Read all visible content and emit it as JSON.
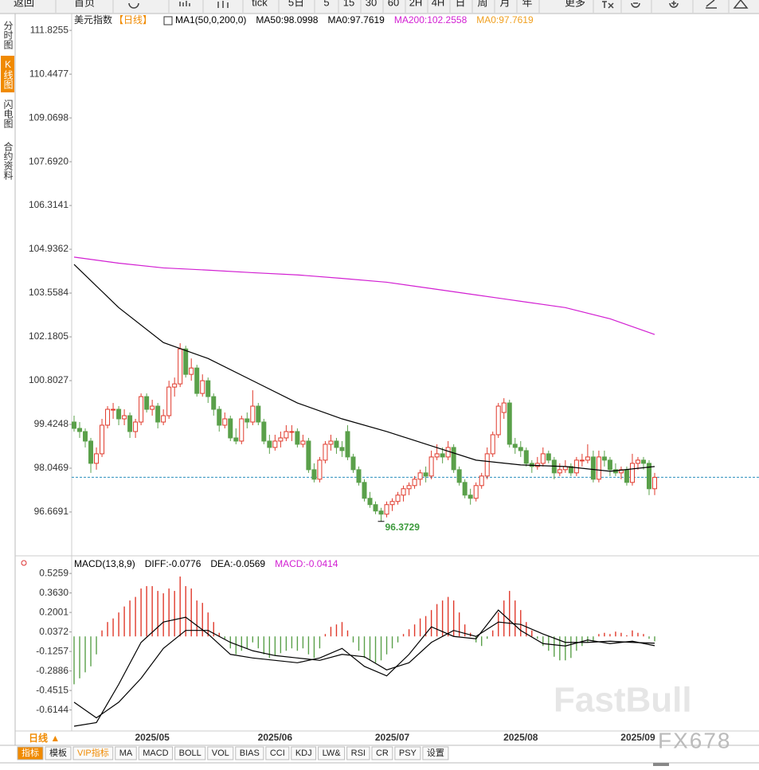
{
  "toolbar": {
    "items": [
      "返回",
      "首页",
      "tick",
      "5日",
      "5",
      "15",
      "30",
      "60",
      "2H",
      "4H",
      "日",
      "周",
      "月",
      "年",
      "更多"
    ]
  },
  "sidebar": {
    "items": [
      "分时图",
      "K线图",
      "闪电图",
      "合约资料"
    ]
  },
  "chart_data": [
    {
      "type": "candlestick",
      "title": "美元指数",
      "period": "【日线】",
      "header_items": [
        {
          "text": "MA1(50,0,200,0)",
          "color": "#000000"
        },
        {
          "text": "MA50:98.0998",
          "color": "#000000"
        },
        {
          "text": "MA0:97.7619",
          "color": "#000000"
        },
        {
          "text": "MA200:102.2558",
          "color": "#d21fd2"
        },
        {
          "text": "MA0:97.7619",
          "color": "#f0a020"
        }
      ],
      "categories": [
        null,
        null,
        null,
        null,
        null,
        null,
        null,
        null,
        null,
        null,
        null,
        null,
        null,
        null,
        "2025/05",
        null,
        null,
        null,
        null,
        null,
        null,
        null,
        null,
        null,
        null,
        null,
        null,
        null,
        null,
        null,
        null,
        null,
        null,
        null,
        null,
        null,
        "2025/06",
        null,
        null,
        null,
        null,
        null,
        null,
        null,
        null,
        null,
        null,
        null,
        null,
        null,
        null,
        null,
        null,
        null,
        null,
        null,
        null,
        "2025/07",
        null,
        null,
        null,
        null,
        null,
        null,
        null,
        null,
        null,
        null,
        null,
        null,
        null,
        null,
        null,
        null,
        null,
        null,
        null,
        null,
        null,
        null,
        "2025/08",
        null,
        null,
        null,
        null,
        null,
        null,
        null,
        null,
        null,
        null,
        null,
        null,
        null,
        null,
        null,
        null,
        null,
        null,
        null,
        null,
        "2025/09",
        null,
        null,
        null
      ],
      "ohlc": [
        [
          99.5,
          99.7,
          99.2,
          99.3
        ],
        [
          99.3,
          99.5,
          99.0,
          99.2
        ],
        [
          99.2,
          99.3,
          98.7,
          98.9
        ],
        [
          98.9,
          99.0,
          97.9,
          98.2
        ],
        [
          98.2,
          98.7,
          98.0,
          98.5
        ],
        [
          98.5,
          99.6,
          98.4,
          99.4
        ],
        [
          99.4,
          100.0,
          99.3,
          99.9
        ],
        [
          99.9,
          100.1,
          99.6,
          99.9
        ],
        [
          99.9,
          100.0,
          99.4,
          99.6
        ],
        [
          99.6,
          99.9,
          99.4,
          99.7
        ],
        [
          99.7,
          99.8,
          99.0,
          99.2
        ],
        [
          99.2,
          99.6,
          99.0,
          99.5
        ],
        [
          99.5,
          100.4,
          99.4,
          100.3
        ],
        [
          100.3,
          100.4,
          99.8,
          99.9
        ],
        [
          99.9,
          100.2,
          99.7,
          100.0
        ],
        [
          100.0,
          100.1,
          99.3,
          99.5
        ],
        [
          99.5,
          99.9,
          99.4,
          99.7
        ],
        [
          99.7,
          100.8,
          99.6,
          100.6
        ],
        [
          100.6,
          100.9,
          100.3,
          100.7
        ],
        [
          100.7,
          101.98,
          100.6,
          101.8
        ],
        [
          101.8,
          101.9,
          100.9,
          101.0
        ],
        [
          101.0,
          101.5,
          100.8,
          101.2
        ],
        [
          101.2,
          101.3,
          100.3,
          100.4
        ],
        [
          100.4,
          101.0,
          100.3,
          100.8
        ],
        [
          100.8,
          100.9,
          100.1,
          100.3
        ],
        [
          100.3,
          100.4,
          99.7,
          99.9
        ],
        [
          99.9,
          100.0,
          99.2,
          99.4
        ],
        [
          99.4,
          99.8,
          99.3,
          99.6
        ],
        [
          99.6,
          99.7,
          98.9,
          99.0
        ],
        [
          99.0,
          99.3,
          98.8,
          98.9
        ],
        [
          98.9,
          99.7,
          98.8,
          99.6
        ],
        [
          99.6,
          99.8,
          99.3,
          99.5
        ],
        [
          99.5,
          100.5,
          99.4,
          100.0
        ],
        [
          100.0,
          100.1,
          99.4,
          99.5
        ],
        [
          99.5,
          99.6,
          98.8,
          98.9
        ],
        [
          98.9,
          99.1,
          98.5,
          98.7
        ],
        [
          98.7,
          99.1,
          98.6,
          98.9
        ],
        [
          98.9,
          99.2,
          98.7,
          99.0
        ],
        [
          99.0,
          99.4,
          98.9,
          99.2
        ],
        [
          99.2,
          99.4,
          98.9,
          99.2
        ],
        [
          99.2,
          99.3,
          98.7,
          98.8
        ],
        [
          98.8,
          99.1,
          98.7,
          98.9
        ],
        [
          98.9,
          99.0,
          97.9,
          98.0
        ],
        [
          98.0,
          98.2,
          97.6,
          97.7
        ],
        [
          97.7,
          98.4,
          97.6,
          98.3
        ],
        [
          98.3,
          98.9,
          98.2,
          98.8
        ],
        [
          98.8,
          99.1,
          98.6,
          98.9
        ],
        [
          98.9,
          99.0,
          98.5,
          98.7
        ],
        [
          98.7,
          98.9,
          98.4,
          98.6
        ],
        [
          99.2,
          99.4,
          98.3,
          98.4
        ],
        [
          98.4,
          98.5,
          97.9,
          98.0
        ],
        [
          98.0,
          98.1,
          97.5,
          97.6
        ],
        [
          97.6,
          97.7,
          97.0,
          97.1
        ],
        [
          97.1,
          97.3,
          96.8,
          96.9
        ],
        [
          96.9,
          97.0,
          96.6,
          96.7
        ],
        [
          96.7,
          96.8,
          96.3729,
          96.6
        ],
        [
          96.6,
          97.0,
          96.5,
          96.9
        ],
        [
          96.9,
          97.1,
          96.7,
          97.0
        ],
        [
          97.0,
          97.3,
          96.9,
          97.2
        ],
        [
          97.2,
          97.5,
          97.0,
          97.4
        ],
        [
          97.4,
          97.6,
          97.2,
          97.5
        ],
        [
          97.5,
          97.8,
          97.4,
          97.7
        ],
        [
          97.7,
          98.0,
          97.5,
          97.9
        ],
        [
          97.9,
          98.1,
          97.6,
          97.8
        ],
        [
          97.8,
          98.6,
          97.7,
          98.4
        ],
        [
          98.4,
          98.8,
          98.3,
          98.5
        ],
        [
          98.5,
          98.7,
          98.2,
          98.4
        ],
        [
          98.4,
          98.9,
          98.3,
          98.7
        ],
        [
          98.7,
          98.8,
          97.9,
          98.0
        ],
        [
          98.0,
          98.1,
          97.5,
          97.6
        ],
        [
          97.6,
          97.7,
          97.1,
          97.2
        ],
        [
          97.2,
          97.4,
          96.9,
          97.1
        ],
        [
          97.1,
          97.6,
          97.0,
          97.5
        ],
        [
          97.5,
          97.9,
          97.4,
          97.8
        ],
        [
          97.8,
          98.7,
          97.7,
          98.5
        ],
        [
          98.5,
          99.2,
          98.4,
          99.1
        ],
        [
          99.1,
          100.1,
          99.0,
          100.0
        ],
        [
          99.8,
          100.25,
          99.6,
          100.1
        ],
        [
          100.1,
          100.2,
          98.7,
          98.8
        ],
        [
          98.8,
          99.0,
          98.5,
          98.7
        ],
        [
          98.7,
          98.9,
          98.4,
          98.6
        ],
        [
          98.6,
          98.7,
          98.1,
          98.2
        ],
        [
          98.2,
          98.3,
          97.9,
          98.1
        ],
        [
          98.1,
          98.4,
          98.0,
          98.2
        ],
        [
          98.2,
          98.7,
          98.1,
          98.5
        ],
        [
          98.5,
          98.6,
          98.2,
          98.3
        ],
        [
          98.3,
          98.4,
          97.7,
          97.9
        ],
        [
          97.9,
          98.2,
          97.8,
          98.0
        ],
        [
          98.0,
          98.3,
          97.9,
          98.1
        ],
        [
          98.1,
          98.2,
          97.8,
          97.9
        ],
        [
          97.9,
          98.4,
          97.8,
          98.3
        ],
        [
          98.3,
          98.5,
          98.1,
          98.3
        ],
        [
          98.3,
          98.8,
          98.2,
          98.4
        ],
        [
          98.4,
          98.6,
          97.6,
          97.7
        ],
        [
          97.7,
          98.6,
          97.6,
          98.4
        ],
        [
          98.4,
          98.6,
          98.1,
          98.3
        ],
        [
          98.3,
          98.4,
          97.8,
          98.0
        ],
        [
          98.0,
          98.2,
          97.8,
          97.9
        ],
        [
          97.9,
          98.1,
          97.7,
          98.0
        ],
        [
          98.0,
          98.1,
          97.5,
          97.6
        ],
        [
          97.6,
          98.5,
          97.5,
          98.2
        ],
        [
          98.2,
          98.4,
          98.0,
          98.3
        ],
        [
          98.3,
          98.4,
          98.0,
          98.2
        ],
        [
          98.2,
          98.3,
          97.2,
          97.4
        ],
        [
          97.4,
          97.9,
          97.2,
          97.76
        ]
      ],
      "up_color": "#e0392b",
      "down_color": "#5aa04a",
      "ma_lines": [
        {
          "color": "#000000",
          "x": [
            0,
            8,
            16,
            24,
            32,
            40,
            48,
            56,
            64,
            72,
            80,
            88,
            96,
            104
          ],
          "values": [
            104.46,
            103.1,
            102.0,
            101.5,
            100.8,
            100.1,
            99.6,
            99.2,
            98.75,
            98.3,
            98.15,
            98.1,
            97.95,
            98.0998
          ]
        },
        {
          "color": "#d21fd2",
          "x": [
            0,
            8,
            16,
            24,
            32,
            40,
            48,
            56,
            64,
            72,
            80,
            88,
            96,
            104
          ],
          "values": [
            104.69,
            104.5,
            104.35,
            104.28,
            104.2,
            104.13,
            104.02,
            103.9,
            103.7,
            103.5,
            103.3,
            103.1,
            102.75,
            102.2558
          ]
        }
      ],
      "price_line": {
        "value": 97.7619,
        "color": "#2a8fbd"
      },
      "low_label": 96.3729,
      "low_label_color": "#3c9a3c",
      "ylim": [
        95.29,
        112.28
      ],
      "yticks": [
        111.8255,
        110.4477,
        109.0698,
        {
          "value": 107.692,
          "label": "107.6920"
        },
        106.3141,
        104.9362,
        103.5584,
        102.1805,
        100.8027,
        99.4248,
        98.0469,
        96.6691
      ]
    },
    {
      "type": "macd",
      "header_items": [
        {
          "text": "MACD(13,8,9)",
          "color": "#000000"
        },
        {
          "text": "DIFF:-0.0776",
          "color": "#000000"
        },
        {
          "text": "DEA:-0.0569",
          "color": "#000000"
        },
        {
          "text": "MACD:-0.0414",
          "color": "#d21fd2"
        }
      ],
      "histogram": [
        -0.4,
        -0.35,
        -0.3,
        -0.25,
        -0.15,
        0.05,
        0.12,
        0.15,
        0.2,
        0.25,
        0.3,
        0.33,
        0.4,
        0.42,
        0.42,
        0.38,
        0.36,
        0.4,
        0.38,
        0.5,
        0.42,
        0.4,
        0.3,
        0.28,
        0.2,
        0.12,
        0.03,
        -0.02,
        -0.1,
        -0.15,
        -0.12,
        -0.1,
        -0.05,
        -0.1,
        -0.15,
        -0.18,
        -0.16,
        -0.14,
        -0.12,
        -0.1,
        -0.12,
        -0.1,
        -0.15,
        -0.18,
        -0.1,
        0.02,
        0.08,
        0.1,
        0.12,
        0.05,
        -0.05,
        -0.12,
        -0.18,
        -0.2,
        -0.22,
        -0.2,
        -0.15,
        -0.1,
        -0.05,
        0.02,
        0.06,
        0.1,
        0.15,
        0.17,
        0.22,
        0.27,
        0.3,
        0.33,
        0.3,
        0.2,
        0.1,
        0.03,
        -0.05,
        -0.08,
        -0.02,
        0.05,
        0.2,
        0.3,
        0.38,
        0.3,
        0.22,
        0.12,
        0.05,
        -0.02,
        -0.08,
        -0.12,
        -0.17,
        -0.2,
        -0.2,
        -0.18,
        -0.12,
        -0.08,
        -0.05,
        -0.04,
        0.02,
        0.03,
        0.02,
        0.04,
        0.03,
        0.01,
        0.05,
        0.03,
        0.02,
        -0.02,
        -0.0414
      ],
      "up_color": "#e0392b",
      "down_color": "#5aa04a",
      "lines": [
        {
          "color": "#000000",
          "x": [
            0,
            4,
            8,
            12,
            16,
            20,
            24,
            28,
            32,
            36,
            40,
            44,
            48,
            52,
            56,
            60,
            64,
            68,
            72,
            76,
            80,
            84,
            88,
            92,
            96,
            100,
            104
          ],
          "values": [
            -0.75,
            -0.72,
            -0.4,
            -0.05,
            0.12,
            0.16,
            0.02,
            -0.15,
            -0.18,
            -0.2,
            -0.22,
            -0.18,
            -0.1,
            -0.25,
            -0.33,
            -0.15,
            0.08,
            0.0,
            -0.02,
            0.22,
            0.05,
            -0.06,
            -0.08,
            -0.03,
            -0.06,
            -0.04,
            -0.0776
          ]
        },
        {
          "color": "#000000",
          "x": [
            0,
            4,
            8,
            12,
            16,
            20,
            24,
            28,
            32,
            36,
            40,
            44,
            48,
            52,
            56,
            60,
            64,
            68,
            72,
            76,
            80,
            84,
            88,
            92,
            96,
            100,
            104
          ],
          "values": [
            -0.55,
            -0.68,
            -0.55,
            -0.35,
            -0.1,
            0.05,
            0.05,
            -0.05,
            -0.12,
            -0.16,
            -0.18,
            -0.2,
            -0.15,
            -0.17,
            -0.28,
            -0.22,
            -0.05,
            0.05,
            0.0,
            0.12,
            0.1,
            0.02,
            -0.05,
            -0.05,
            -0.04,
            -0.05,
            -0.0569
          ]
        }
      ],
      "ylim": [
        -0.79,
        0.66
      ],
      "yticks": [
        0.5259,
        {
          "value": 0.363,
          "label": "0.3630"
        },
        0.2001,
        0.0372,
        -0.1257,
        -0.2886,
        -0.4515,
        -0.6144
      ]
    }
  ],
  "bottom_bar": {
    "period": "日线 ▲",
    "tabs": [
      "指标",
      "模板",
      "VIP指标",
      "MA",
      "MACD",
      "BOLL",
      "VOL",
      "BIAS",
      "CCI",
      "KDJ",
      "LW&",
      "RSI",
      "CR",
      "PSY",
      "设置"
    ]
  },
  "watermarks": [
    "FastBull",
    "FX678"
  ]
}
